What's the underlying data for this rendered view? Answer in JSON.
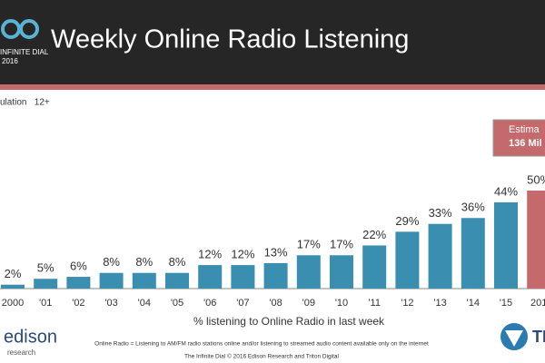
{
  "chart_data": {
    "type": "bar",
    "title": "Weekly Online Radio Listening",
    "logo_text": "INFINITE DIAL",
    "logo_year": "2016",
    "subtitle": "ulation   12+",
    "estimate_lines": [
      "Estima",
      "136 Mil"
    ],
    "categories": [
      "2000",
      "'01",
      "'02",
      "'03",
      "'04",
      "'05",
      "'06",
      "'07",
      "'08",
      "'09",
      "'10",
      "'11",
      "'12",
      "'13",
      "'14",
      "'15",
      "201"
    ],
    "values": [
      2,
      5,
      6,
      8,
      8,
      8,
      12,
      12,
      13,
      17,
      17,
      22,
      29,
      33,
      36,
      44,
      50
    ],
    "value_labels": [
      "2%",
      "5%",
      "6%",
      "8%",
      "8%",
      "8%",
      "12%",
      "12%",
      "13%",
      "17%",
      "17%",
      "22%",
      "29%",
      "33%",
      "36%",
      "44%",
      "50%"
    ],
    "colors": [
      "#3a8fb0",
      "#3a8fb0",
      "#3a8fb0",
      "#3a8fb0",
      "#3a8fb0",
      "#3a8fb0",
      "#3a8fb0",
      "#3a8fb0",
      "#3a8fb0",
      "#3a8fb0",
      "#3a8fb0",
      "#3a8fb0",
      "#3a8fb0",
      "#3a8fb0",
      "#3a8fb0",
      "#3a8fb0",
      "#c4696c"
    ],
    "x_label": "% listening to Online Radio in last week",
    "footnote": "Online Radio = Listening to AM/FM radio stations online and/or listening to streamed audio content available only on the internet",
    "credit": "The Infinite Dial  © 2016 Edison Research and Triton Digital",
    "edison_logo": [
      "edison",
      "research"
    ],
    "triton_logo": "TR"
  }
}
